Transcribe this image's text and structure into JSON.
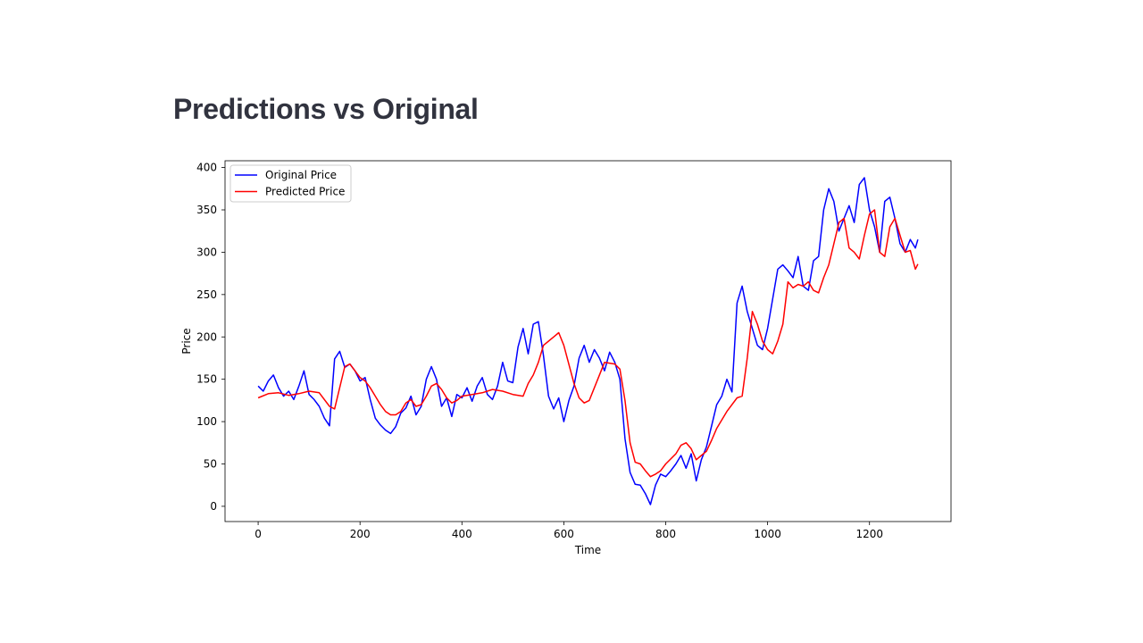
{
  "page": {
    "heading": "Predictions vs Original"
  },
  "chart_data": {
    "type": "line",
    "title": "",
    "xlabel": "Time",
    "ylabel": "Price",
    "xlim": [
      -65,
      1360
    ],
    "ylim": [
      -18,
      408
    ],
    "xticks": [
      0,
      200,
      400,
      600,
      800,
      1000,
      1200
    ],
    "yticks": [
      0,
      50,
      100,
      150,
      200,
      250,
      300,
      350,
      400
    ],
    "grid": false,
    "legend_position": "upper-left",
    "series": [
      {
        "name": "Original Price",
        "color": "#0000ff",
        "x": [
          0,
          10,
          20,
          30,
          40,
          50,
          60,
          70,
          80,
          90,
          100,
          110,
          120,
          130,
          140,
          150,
          160,
          170,
          180,
          190,
          200,
          210,
          220,
          230,
          240,
          250,
          260,
          270,
          280,
          290,
          300,
          310,
          320,
          330,
          340,
          350,
          360,
          370,
          380,
          390,
          400,
          410,
          420,
          430,
          440,
          450,
          460,
          470,
          480,
          490,
          500,
          510,
          520,
          530,
          540,
          550,
          560,
          570,
          580,
          590,
          600,
          610,
          620,
          630,
          640,
          650,
          660,
          670,
          680,
          690,
          700,
          710,
          720,
          730,
          740,
          750,
          760,
          770,
          780,
          790,
          800,
          810,
          820,
          830,
          840,
          850,
          860,
          870,
          880,
          890,
          900,
          910,
          920,
          930,
          940,
          950,
          960,
          970,
          980,
          990,
          1000,
          1010,
          1020,
          1030,
          1040,
          1050,
          1060,
          1070,
          1080,
          1090,
          1100,
          1110,
          1120,
          1130,
          1140,
          1150,
          1160,
          1170,
          1180,
          1190,
          1200,
          1210,
          1220,
          1230,
          1240,
          1250,
          1260,
          1270,
          1280,
          1290,
          1295
        ],
        "values": [
          142,
          136,
          148,
          155,
          140,
          130,
          136,
          126,
          142,
          160,
          132,
          126,
          118,
          104,
          95,
          174,
          183,
          164,
          168,
          160,
          148,
          152,
          126,
          104,
          96,
          90,
          86,
          94,
          110,
          116,
          130,
          108,
          118,
          150,
          165,
          150,
          118,
          128,
          106,
          132,
          128,
          140,
          124,
          142,
          152,
          132,
          126,
          142,
          170,
          148,
          146,
          188,
          210,
          180,
          215,
          218,
          178,
          130,
          115,
          128,
          100,
          125,
          142,
          175,
          190,
          170,
          185,
          175,
          160,
          182,
          170,
          150,
          80,
          40,
          26,
          25,
          15,
          2,
          25,
          38,
          35,
          42,
          50,
          60,
          45,
          62,
          30,
          55,
          70,
          95,
          120,
          130,
          150,
          135,
          240,
          260,
          230,
          210,
          190,
          185,
          210,
          245,
          280,
          285,
          278,
          270,
          295,
          260,
          255,
          290,
          295,
          350,
          375,
          360,
          325,
          340,
          355,
          335,
          380,
          388,
          350,
          330,
          300,
          360,
          365,
          340,
          310,
          300,
          315,
          305,
          315
        ]
      },
      {
        "name": "Predicted Price",
        "color": "#ff0000",
        "x": [
          0,
          20,
          40,
          60,
          80,
          100,
          120,
          140,
          150,
          160,
          170,
          180,
          190,
          200,
          210,
          220,
          230,
          240,
          250,
          260,
          270,
          280,
          290,
          300,
          310,
          320,
          330,
          340,
          350,
          360,
          370,
          380,
          390,
          400,
          420,
          440,
          460,
          480,
          500,
          520,
          530,
          540,
          550,
          560,
          570,
          580,
          590,
          600,
          620,
          630,
          640,
          650,
          660,
          680,
          700,
          710,
          720,
          730,
          740,
          750,
          760,
          770,
          780,
          790,
          800,
          820,
          830,
          840,
          850,
          860,
          870,
          880,
          890,
          900,
          920,
          940,
          950,
          960,
          970,
          980,
          990,
          1000,
          1010,
          1020,
          1030,
          1040,
          1050,
          1060,
          1070,
          1080,
          1090,
          1100,
          1110,
          1120,
          1130,
          1140,
          1150,
          1160,
          1170,
          1180,
          1190,
          1200,
          1210,
          1220,
          1230,
          1240,
          1250,
          1260,
          1270,
          1280,
          1290,
          1295
        ],
        "values": [
          128,
          133,
          134,
          131,
          133,
          136,
          134,
          118,
          115,
          140,
          165,
          168,
          160,
          152,
          148,
          140,
          130,
          120,
          112,
          108,
          108,
          112,
          122,
          126,
          118,
          120,
          130,
          142,
          145,
          138,
          128,
          122,
          125,
          130,
          132,
          134,
          138,
          136,
          132,
          130,
          145,
          155,
          170,
          190,
          195,
          200,
          205,
          190,
          145,
          128,
          122,
          125,
          140,
          170,
          168,
          162,
          125,
          75,
          52,
          50,
          42,
          35,
          38,
          42,
          50,
          62,
          72,
          75,
          68,
          55,
          60,
          65,
          78,
          92,
          112,
          128,
          130,
          175,
          230,
          215,
          195,
          185,
          180,
          195,
          215,
          265,
          258,
          262,
          260,
          265,
          255,
          252,
          270,
          285,
          310,
          335,
          340,
          305,
          300,
          292,
          320,
          345,
          350,
          300,
          295,
          330,
          340,
          320,
          300,
          302,
          280,
          286
        ]
      }
    ]
  }
}
